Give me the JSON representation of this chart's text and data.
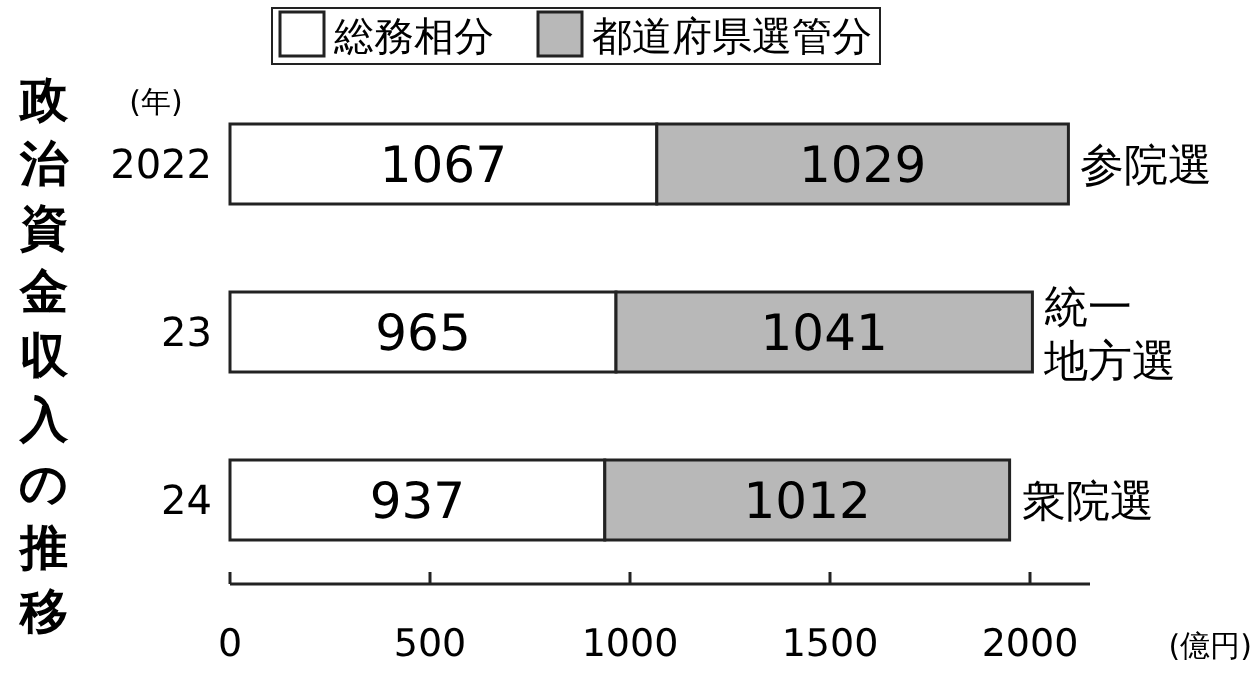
{
  "chart_data": {
    "type": "bar",
    "orientation": "horizontal",
    "stacked": true,
    "title": "政治資金収入の推移",
    "ylabel": "(年)",
    "xlabel": "(億円)",
    "categories": [
      "2022",
      "23",
      "24"
    ],
    "series": [
      {
        "name": "総務相分",
        "color": "#ffffff",
        "values": [
          1067,
          965,
          937
        ]
      },
      {
        "name": "都道府県選管分",
        "color": "#b8b8b8",
        "values": [
          1029,
          1041,
          1012
        ]
      }
    ],
    "data_labels": true,
    "annotations": [
      {
        "text": "参院選",
        "x": 2096,
        "y": "2022"
      },
      {
        "text": "統一地方選",
        "x": 2006,
        "y": "23"
      },
      {
        "text": "衆院選",
        "x": 1949,
        "y": "24"
      }
    ],
    "xlim": [
      0,
      2150
    ],
    "xticks": [
      0,
      500,
      1000,
      1500,
      2000
    ],
    "grid": false,
    "legend": "top"
  }
}
